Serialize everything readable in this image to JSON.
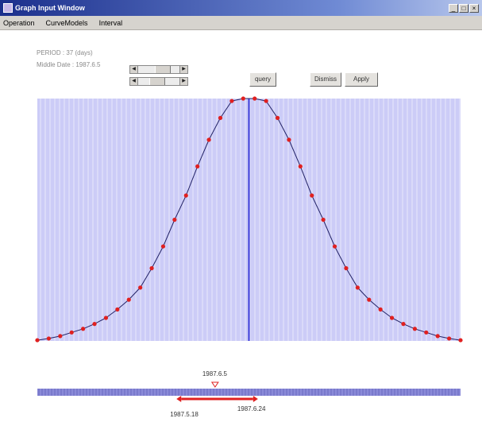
{
  "window": {
    "title": "Graph Input Window"
  },
  "menu": [
    "Operation",
    "CurveModels",
    "Interval"
  ],
  "info": {
    "period": "PERIOD : 37 (days)",
    "middle_date": "Middle Date : 1987.6.5"
  },
  "buttons": {
    "query": "query",
    "dismiss": "Dismiss",
    "apply": "Apply"
  },
  "sliders": [
    {
      "value": 0.65
    },
    {
      "value": 0.45
    }
  ],
  "colors": {
    "plot_bg": "#ccccf7",
    "stripe": "#ffffff",
    "curve": "#222266",
    "marker": "#e02020",
    "center_line": "#3a3ad8",
    "timeline": "#8a8ad8",
    "range_bar": "#e02020"
  },
  "chart_data": {
    "type": "line",
    "title": "",
    "xlabel": "",
    "ylabel": "",
    "x": [
      0,
      1,
      2,
      3,
      4,
      5,
      6,
      7,
      8,
      9,
      10,
      11,
      12,
      13,
      14,
      15,
      16,
      17,
      18,
      19,
      20,
      21,
      22,
      23,
      24,
      25,
      26,
      27,
      28,
      29,
      30,
      31,
      32,
      33,
      34,
      35,
      36,
      37
    ],
    "y": [
      0.003,
      0.01,
      0.02,
      0.035,
      0.05,
      0.07,
      0.095,
      0.13,
      0.17,
      0.22,
      0.3,
      0.39,
      0.5,
      0.6,
      0.72,
      0.83,
      0.92,
      0.99,
      1.0,
      1.0,
      0.99,
      0.92,
      0.83,
      0.72,
      0.6,
      0.5,
      0.39,
      0.3,
      0.22,
      0.17,
      0.13,
      0.095,
      0.07,
      0.05,
      0.035,
      0.02,
      0.01,
      0.003
    ],
    "ylim": [
      0,
      1
    ],
    "center_index": 18.5,
    "grid": true
  },
  "timeline": {
    "middle_label": "1987.6.5",
    "start_label": "1987.5.18",
    "end_label": "1987.6.24",
    "range_start_frac": 0.34,
    "range_end_frac": 0.51,
    "middle_frac": 0.42
  }
}
